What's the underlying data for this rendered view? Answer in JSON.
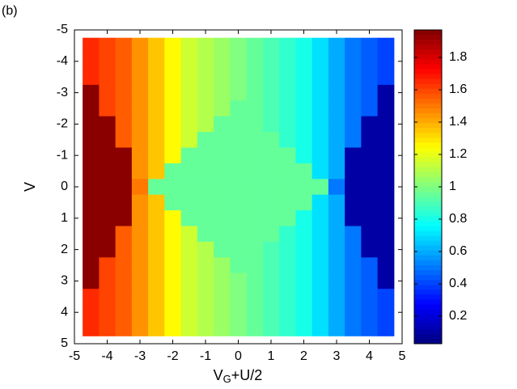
{
  "chart_data": {
    "type": "heatmap",
    "panel_label": "(b)",
    "xlabel": [
      "V",
      "G",
      "+U/2"
    ],
    "ylabel": "V",
    "x": [
      -4.5,
      -4,
      -3.5,
      -3,
      -2.5,
      -2,
      -1.5,
      -1,
      -0.5,
      0,
      0.5,
      1,
      1.5,
      2,
      2.5,
      3,
      3.5,
      4,
      4.5
    ],
    "y": [
      -4.5,
      -4,
      -3.5,
      -3,
      -2.5,
      -2,
      -1.5,
      -1,
      -0.5,
      0,
      0.5,
      1,
      1.5,
      2,
      2.5,
      3,
      3.5,
      4,
      4.5
    ],
    "z": [
      [
        1.65,
        1.6,
        1.55,
        1.45,
        1.35,
        1.25,
        1.15,
        1.1,
        1.05,
        1.0,
        0.95,
        0.9,
        0.85,
        0.8,
        0.7,
        0.6,
        0.5,
        0.45,
        0.4
      ],
      [
        1.65,
        1.6,
        1.55,
        1.45,
        1.35,
        1.25,
        1.15,
        1.1,
        1.05,
        1.0,
        0.95,
        0.9,
        0.85,
        0.8,
        0.7,
        0.6,
        0.5,
        0.45,
        0.4
      ],
      [
        1.65,
        1.6,
        1.55,
        1.45,
        1.35,
        1.25,
        1.15,
        1.1,
        1.05,
        1.0,
        0.95,
        0.9,
        0.85,
        0.8,
        0.7,
        0.6,
        0.5,
        0.45,
        0.4
      ],
      [
        1.95,
        1.6,
        1.55,
        1.45,
        1.35,
        1.25,
        1.15,
        1.1,
        1.05,
        1.0,
        0.95,
        0.9,
        0.85,
        0.8,
        0.7,
        0.6,
        0.5,
        0.45,
        0.1
      ],
      [
        1.95,
        1.6,
        1.55,
        1.45,
        1.35,
        1.25,
        1.15,
        1.1,
        1.05,
        0.95,
        0.95,
        0.9,
        0.85,
        0.8,
        0.7,
        0.6,
        0.5,
        0.45,
        0.1
      ],
      [
        1.95,
        1.95,
        1.55,
        1.45,
        1.35,
        1.25,
        1.15,
        1.1,
        0.95,
        0.95,
        0.95,
        0.9,
        0.85,
        0.8,
        0.7,
        0.6,
        0.5,
        0.1,
        0.1
      ],
      [
        1.95,
        1.95,
        1.55,
        1.45,
        1.35,
        1.25,
        1.15,
        0.95,
        0.95,
        0.95,
        0.95,
        0.95,
        0.85,
        0.8,
        0.7,
        0.6,
        0.5,
        0.1,
        0.1
      ],
      [
        1.95,
        1.95,
        1.95,
        1.45,
        1.35,
        1.25,
        0.95,
        0.95,
        0.95,
        0.95,
        0.95,
        0.95,
        0.95,
        0.8,
        0.7,
        0.6,
        0.1,
        0.1,
        0.1
      ],
      [
        1.95,
        1.95,
        1.95,
        1.45,
        1.35,
        0.95,
        0.95,
        0.95,
        0.95,
        0.95,
        0.95,
        0.95,
        0.95,
        0.95,
        0.7,
        0.6,
        0.1,
        0.1,
        0.1
      ],
      [
        1.95,
        1.95,
        1.95,
        1.5,
        0.95,
        0.95,
        0.95,
        0.95,
        0.95,
        0.95,
        0.95,
        0.95,
        0.95,
        0.95,
        0.95,
        0.5,
        0.1,
        0.1,
        0.1
      ],
      [
        1.95,
        1.95,
        1.95,
        1.45,
        1.35,
        0.95,
        0.95,
        0.95,
        0.95,
        0.95,
        0.95,
        0.95,
        0.95,
        0.95,
        0.7,
        0.6,
        0.1,
        0.1,
        0.1
      ],
      [
        1.95,
        1.95,
        1.95,
        1.45,
        1.35,
        1.25,
        0.95,
        0.95,
        0.95,
        0.95,
        0.95,
        0.95,
        0.95,
        0.8,
        0.7,
        0.6,
        0.1,
        0.1,
        0.1
      ],
      [
        1.95,
        1.95,
        1.55,
        1.45,
        1.35,
        1.25,
        1.15,
        0.95,
        0.95,
        0.95,
        0.95,
        0.95,
        0.85,
        0.8,
        0.7,
        0.6,
        0.5,
        0.1,
        0.1
      ],
      [
        1.95,
        1.95,
        1.55,
        1.45,
        1.35,
        1.25,
        1.15,
        1.1,
        0.95,
        0.95,
        0.95,
        0.9,
        0.85,
        0.8,
        0.7,
        0.6,
        0.5,
        0.1,
        0.1
      ],
      [
        1.95,
        1.6,
        1.55,
        1.45,
        1.35,
        1.25,
        1.15,
        1.1,
        1.05,
        0.95,
        0.95,
        0.9,
        0.85,
        0.8,
        0.7,
        0.6,
        0.5,
        0.45,
        0.1
      ],
      [
        1.95,
        1.6,
        1.55,
        1.45,
        1.35,
        1.25,
        1.15,
        1.1,
        1.05,
        1.0,
        0.95,
        0.9,
        0.85,
        0.8,
        0.7,
        0.6,
        0.5,
        0.45,
        0.1
      ],
      [
        1.65,
        1.6,
        1.55,
        1.45,
        1.35,
        1.25,
        1.15,
        1.1,
        1.05,
        1.0,
        0.95,
        0.9,
        0.85,
        0.8,
        0.7,
        0.6,
        0.5,
        0.45,
        0.4
      ],
      [
        1.65,
        1.6,
        1.55,
        1.45,
        1.35,
        1.25,
        1.15,
        1.1,
        1.05,
        1.0,
        0.95,
        0.9,
        0.85,
        0.8,
        0.7,
        0.6,
        0.5,
        0.45,
        0.4
      ],
      [
        1.65,
        1.6,
        1.55,
        1.45,
        1.35,
        1.25,
        1.15,
        1.1,
        1.05,
        1.0,
        0.95,
        0.9,
        0.85,
        0.8,
        0.7,
        0.6,
        0.5,
        0.45,
        0.4
      ]
    ],
    "xlim": [
      -5,
      5
    ],
    "ylim": [
      5,
      -5
    ],
    "xticks": [
      -5,
      -4,
      -3,
      -2,
      -1,
      0,
      1,
      2,
      3,
      4,
      5
    ],
    "yticks": [
      -5,
      -4,
      -3,
      -2,
      -1,
      0,
      1,
      2,
      3,
      4,
      5
    ],
    "colormap": "jet",
    "zlim": [
      0.03,
      1.97
    ],
    "zticks": [
      0.2,
      0.4,
      0.6,
      0.8,
      1,
      1.2,
      1.4,
      1.6,
      1.8
    ]
  }
}
